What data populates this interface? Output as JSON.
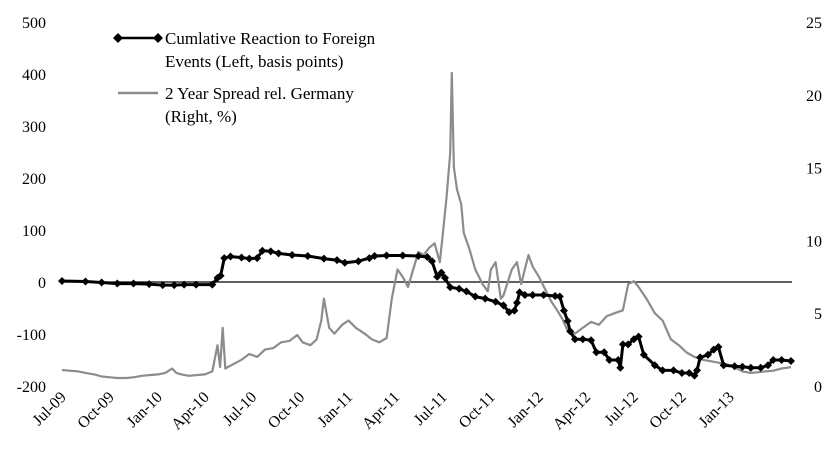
{
  "chart_data": {
    "type": "line",
    "title": "",
    "x_tick_labels": [
      "Jul-09",
      "Oct-09",
      "Jan-10",
      "Apr-10",
      "Jul-10",
      "Oct-10",
      "Jan-11",
      "Apr-11",
      "Jul-11",
      "Oct-11",
      "Jan-12",
      "Apr-12",
      "Jul-12",
      "Oct-12",
      "Jan-13"
    ],
    "left_axis": {
      "range": [
        -200,
        500
      ],
      "ticks": [
        "500",
        "400",
        "300",
        "200",
        "100",
        "0",
        "-100",
        "-200"
      ]
    },
    "right_axis": {
      "range": [
        0,
        25
      ],
      "ticks": [
        "25",
        "20",
        "15",
        "10",
        "5",
        "0"
      ]
    },
    "zero_line": true,
    "grid": false,
    "legend_position": "top-left",
    "legend": [
      {
        "line1": "Cumlative Reaction to Foreign",
        "line2": "Events (Left, basis points)",
        "color": "#000000",
        "marker": "diamond"
      },
      {
        "line1": "2 Year Spread rel. Germany",
        "line2": "(Right, %)",
        "color": "#8c8c8c",
        "marker": "none"
      }
    ],
    "x_date_start": "2009-07-01",
    "x_date_end": "2013-04-30",
    "series": [
      {
        "name": "Cumlative Reaction to Foreign Events (Left, basis points)",
        "axis": "left",
        "color": "#000000",
        "points": [
          [
            "2009-07-01",
            2
          ],
          [
            "2009-08-15",
            1
          ],
          [
            "2009-09-15",
            -1
          ],
          [
            "2009-10-15",
            -3
          ],
          [
            "2009-11-15",
            -3
          ],
          [
            "2009-12-15",
            -4
          ],
          [
            "2010-01-10",
            -6
          ],
          [
            "2010-02-01",
            -6
          ],
          [
            "2010-02-20",
            -5
          ],
          [
            "2010-03-15",
            -5
          ],
          [
            "2010-04-15",
            -5
          ],
          [
            "2010-04-25",
            8
          ],
          [
            "2010-05-01",
            12
          ],
          [
            "2010-05-08",
            46
          ],
          [
            "2010-05-20",
            49
          ],
          [
            "2010-06-10",
            47
          ],
          [
            "2010-06-25",
            45
          ],
          [
            "2010-07-10",
            46
          ],
          [
            "2010-07-20",
            60
          ],
          [
            "2010-08-05",
            59
          ],
          [
            "2010-08-20",
            55
          ],
          [
            "2010-09-15",
            52
          ],
          [
            "2010-10-15",
            50
          ],
          [
            "2010-11-15",
            45
          ],
          [
            "2010-12-10",
            42
          ],
          [
            "2010-12-25",
            37
          ],
          [
            "2011-01-20",
            40
          ],
          [
            "2011-02-10",
            46
          ],
          [
            "2011-02-20",
            50
          ],
          [
            "2011-03-15",
            51
          ],
          [
            "2011-04-15",
            51
          ],
          [
            "2011-05-15",
            50
          ],
          [
            "2011-06-01",
            48
          ],
          [
            "2011-06-10",
            40
          ],
          [
            "2011-06-20",
            10
          ],
          [
            "2011-06-28",
            18
          ],
          [
            "2011-07-05",
            8
          ],
          [
            "2011-07-15",
            -10
          ],
          [
            "2011-08-01",
            -13
          ],
          [
            "2011-08-15",
            -18
          ],
          [
            "2011-09-01",
            -28
          ],
          [
            "2011-09-20",
            -32
          ],
          [
            "2011-10-10",
            -38
          ],
          [
            "2011-10-25",
            -45
          ],
          [
            "2011-11-05",
            -58
          ],
          [
            "2011-11-15",
            -55
          ],
          [
            "2011-11-20",
            -40
          ],
          [
            "2011-11-25",
            -20
          ],
          [
            "2011-12-05",
            -25
          ],
          [
            "2011-12-20",
            -25
          ],
          [
            "2012-01-10",
            -25
          ],
          [
            "2012-02-01",
            -27
          ],
          [
            "2012-02-10",
            -28
          ],
          [
            "2012-02-18",
            -55
          ],
          [
            "2012-02-25",
            -75
          ],
          [
            "2012-03-01",
            -95
          ],
          [
            "2012-03-10",
            -110
          ],
          [
            "2012-03-25",
            -110
          ],
          [
            "2012-04-10",
            -112
          ],
          [
            "2012-04-20",
            -135
          ],
          [
            "2012-05-05",
            -135
          ],
          [
            "2012-05-15",
            -150
          ],
          [
            "2012-06-01",
            -150
          ],
          [
            "2012-06-05",
            -165
          ],
          [
            "2012-06-10",
            -120
          ],
          [
            "2012-06-20",
            -120
          ],
          [
            "2012-07-01",
            -110
          ],
          [
            "2012-07-10",
            -105
          ],
          [
            "2012-07-20",
            -140
          ],
          [
            "2012-08-10",
            -160
          ],
          [
            "2012-08-25",
            -170
          ],
          [
            "2012-09-15",
            -170
          ],
          [
            "2012-10-01",
            -175
          ],
          [
            "2012-10-15",
            -175
          ],
          [
            "2012-10-25",
            -180
          ],
          [
            "2012-10-30",
            -170
          ],
          [
            "2012-11-05",
            -145
          ],
          [
            "2012-11-20",
            -140
          ],
          [
            "2012-12-01",
            -130
          ],
          [
            "2012-12-10",
            -125
          ],
          [
            "2012-12-20",
            -160
          ],
          [
            "2013-01-10",
            -162
          ],
          [
            "2013-01-25",
            -163
          ],
          [
            "2013-02-10",
            -165
          ],
          [
            "2013-03-01",
            -165
          ],
          [
            "2013-03-15",
            -160
          ],
          [
            "2013-03-25",
            -150
          ],
          [
            "2013-04-10",
            -150
          ],
          [
            "2013-04-28",
            -152
          ]
        ]
      },
      {
        "name": "2 Year Spread rel. Germany (Right, %)",
        "axis": "right",
        "color": "#8c8c8c",
        "points": [
          [
            "2009-07-01",
            1.1
          ],
          [
            "2009-07-15",
            1.05
          ],
          [
            "2009-08-01",
            1.0
          ],
          [
            "2009-08-15",
            0.9
          ],
          [
            "2009-09-01",
            0.8
          ],
          [
            "2009-09-15",
            0.65
          ],
          [
            "2009-10-01",
            0.6
          ],
          [
            "2009-10-15",
            0.55
          ],
          [
            "2009-11-01",
            0.55
          ],
          [
            "2009-11-15",
            0.6
          ],
          [
            "2009-12-01",
            0.7
          ],
          [
            "2009-12-15",
            0.75
          ],
          [
            "2010-01-01",
            0.8
          ],
          [
            "2010-01-15",
            0.9
          ],
          [
            "2010-01-28",
            1.2
          ],
          [
            "2010-02-05",
            0.9
          ],
          [
            "2010-02-15",
            0.8
          ],
          [
            "2010-03-01",
            0.7
          ],
          [
            "2010-03-15",
            0.75
          ],
          [
            "2010-04-01",
            0.8
          ],
          [
            "2010-04-15",
            1.0
          ],
          [
            "2010-04-25",
            2.8
          ],
          [
            "2010-04-30",
            1.3
          ],
          [
            "2010-05-05",
            4.0
          ],
          [
            "2010-05-10",
            1.2
          ],
          [
            "2010-05-25",
            1.5
          ],
          [
            "2010-06-10",
            1.8
          ],
          [
            "2010-06-25",
            2.2
          ],
          [
            "2010-07-10",
            2.0
          ],
          [
            "2010-07-25",
            2.5
          ],
          [
            "2010-08-10",
            2.6
          ],
          [
            "2010-08-25",
            3.0
          ],
          [
            "2010-09-10",
            3.1
          ],
          [
            "2010-09-25",
            3.5
          ],
          [
            "2010-10-05",
            3.0
          ],
          [
            "2010-10-20",
            2.8
          ],
          [
            "2010-11-01",
            3.2
          ],
          [
            "2010-11-10",
            4.5
          ],
          [
            "2010-11-15",
            6.0
          ],
          [
            "2010-11-25",
            4.0
          ],
          [
            "2010-12-05",
            3.6
          ],
          [
            "2010-12-20",
            4.2
          ],
          [
            "2011-01-01",
            4.5
          ],
          [
            "2011-01-15",
            4.0
          ],
          [
            "2011-02-01",
            3.6
          ],
          [
            "2011-02-15",
            3.2
          ],
          [
            "2011-03-01",
            3.0
          ],
          [
            "2011-03-15",
            3.3
          ],
          [
            "2011-03-25",
            6.0
          ],
          [
            "2011-04-05",
            8.0
          ],
          [
            "2011-04-15",
            7.5
          ],
          [
            "2011-04-25",
            6.8
          ],
          [
            "2011-05-05",
            8.0
          ],
          [
            "2011-05-15",
            9.2
          ],
          [
            "2011-05-25",
            9.0
          ],
          [
            "2011-06-05",
            9.5
          ],
          [
            "2011-06-15",
            9.8
          ],
          [
            "2011-06-25",
            8.5
          ],
          [
            "2011-07-01",
            10.5
          ],
          [
            "2011-07-08",
            13.0
          ],
          [
            "2011-07-15",
            16.0
          ],
          [
            "2011-07-18",
            21.5
          ],
          [
            "2011-07-22",
            15.0
          ],
          [
            "2011-07-28",
            13.5
          ],
          [
            "2011-08-05",
            12.5
          ],
          [
            "2011-08-10",
            10.5
          ],
          [
            "2011-08-20",
            9.5
          ],
          [
            "2011-09-01",
            8.0
          ],
          [
            "2011-09-15",
            7.0
          ],
          [
            "2011-09-25",
            6.5
          ],
          [
            "2011-10-01",
            8.0
          ],
          [
            "2011-10-10",
            8.5
          ],
          [
            "2011-10-20",
            6.0
          ],
          [
            "2011-10-25",
            6.2
          ],
          [
            "2011-11-01",
            7.0
          ],
          [
            "2011-11-10",
            8.0
          ],
          [
            "2011-11-20",
            8.5
          ],
          [
            "2011-11-28",
            7.0
          ],
          [
            "2011-12-05",
            8.0
          ],
          [
            "2011-12-12",
            9.0
          ],
          [
            "2011-12-20",
            8.2
          ],
          [
            "2012-01-01",
            7.5
          ],
          [
            "2012-01-15",
            6.5
          ],
          [
            "2012-01-25",
            5.8
          ],
          [
            "2012-02-05",
            5.2
          ],
          [
            "2012-02-15",
            4.6
          ],
          [
            "2012-02-25",
            3.8
          ],
          [
            "2012-03-10",
            3.6
          ],
          [
            "2012-03-25",
            4.0
          ],
          [
            "2012-04-10",
            4.4
          ],
          [
            "2012-04-25",
            4.2
          ],
          [
            "2012-05-10",
            4.8
          ],
          [
            "2012-05-25",
            5.0
          ],
          [
            "2012-06-10",
            5.2
          ],
          [
            "2012-06-20",
            7.0
          ],
          [
            "2012-07-01",
            7.2
          ],
          [
            "2012-07-10",
            6.8
          ],
          [
            "2012-07-25",
            6.0
          ],
          [
            "2012-08-10",
            5.0
          ],
          [
            "2012-08-25",
            4.5
          ],
          [
            "2012-09-10",
            3.2
          ],
          [
            "2012-09-25",
            2.8
          ],
          [
            "2012-10-10",
            2.3
          ],
          [
            "2012-10-25",
            2.0
          ],
          [
            "2012-11-10",
            1.8
          ],
          [
            "2012-11-25",
            1.7
          ],
          [
            "2012-12-10",
            1.6
          ],
          [
            "2012-12-25",
            1.5
          ],
          [
            "2013-01-10",
            1.3
          ],
          [
            "2013-01-25",
            1.0
          ],
          [
            "2013-02-10",
            0.9
          ],
          [
            "2013-02-25",
            0.95
          ],
          [
            "2013-03-10",
            1.0
          ],
          [
            "2013-03-25",
            1.05
          ],
          [
            "2013-04-10",
            1.2
          ],
          [
            "2013-04-28",
            1.3
          ]
        ]
      }
    ]
  }
}
